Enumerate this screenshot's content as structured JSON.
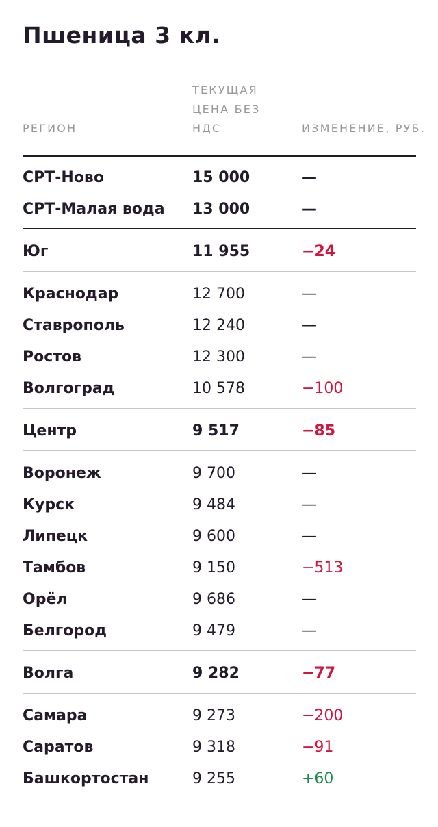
{
  "title": "Пшеница 3 кл.",
  "headers": {
    "region": "РЕГИОН",
    "price": "ТЕКУЩАЯ ЦЕНА БЕЗ НДС",
    "change": "ИЗМЕНЕНИЕ, РУБ."
  },
  "colors": {
    "negative": "#d0153f",
    "positive": "#1e8a4c",
    "text": "#231b2b",
    "muted": "#9a979c"
  },
  "rows": [
    {
      "region": "СРТ-Ново",
      "price": "15 000",
      "change": "—",
      "bold": true,
      "sign": "none"
    },
    {
      "region": "СРТ-Малая вода",
      "price": "13 000",
      "change": "—",
      "bold": true,
      "sign": "none"
    },
    {
      "region": "Юг",
      "price": "11 955",
      "change": "−24",
      "bold": true,
      "sign": "neg"
    },
    {
      "region": "Краснодар",
      "price": "12 700",
      "change": "—",
      "bold": false,
      "sign": "none"
    },
    {
      "region": "Ставрополь",
      "price": "12 240",
      "change": "—",
      "bold": false,
      "sign": "none"
    },
    {
      "region": "Ростов",
      "price": "12 300",
      "change": "—",
      "bold": false,
      "sign": "none"
    },
    {
      "region": "Волгоград",
      "price": "10 578",
      "change": "−100",
      "bold": false,
      "sign": "neg"
    },
    {
      "region": "Центр",
      "price": "9 517",
      "change": "−85",
      "bold": true,
      "sign": "neg"
    },
    {
      "region": "Воронеж",
      "price": "9 700",
      "change": "—",
      "bold": false,
      "sign": "none"
    },
    {
      "region": "Курск",
      "price": "9 484",
      "change": "—",
      "bold": false,
      "sign": "none"
    },
    {
      "region": "Липецк",
      "price": "9 600",
      "change": "—",
      "bold": false,
      "sign": "none"
    },
    {
      "region": "Тамбов",
      "price": "9 150",
      "change": "−513",
      "bold": false,
      "sign": "neg"
    },
    {
      "region": "Орёл",
      "price": "9 686",
      "change": "—",
      "bold": false,
      "sign": "none"
    },
    {
      "region": "Белгород",
      "price": "9 479",
      "change": "—",
      "bold": false,
      "sign": "none"
    },
    {
      "region": "Волга",
      "price": "9 282",
      "change": "−77",
      "bold": true,
      "sign": "neg"
    },
    {
      "region": "Самара",
      "price": "9 273",
      "change": "−200",
      "bold": false,
      "sign": "neg"
    },
    {
      "region": "Саратов",
      "price": "9 318",
      "change": "−91",
      "bold": false,
      "sign": "neg"
    },
    {
      "region": "Башкортостан",
      "price": "9 255",
      "change": "+60",
      "bold": false,
      "sign": "pos"
    }
  ]
}
